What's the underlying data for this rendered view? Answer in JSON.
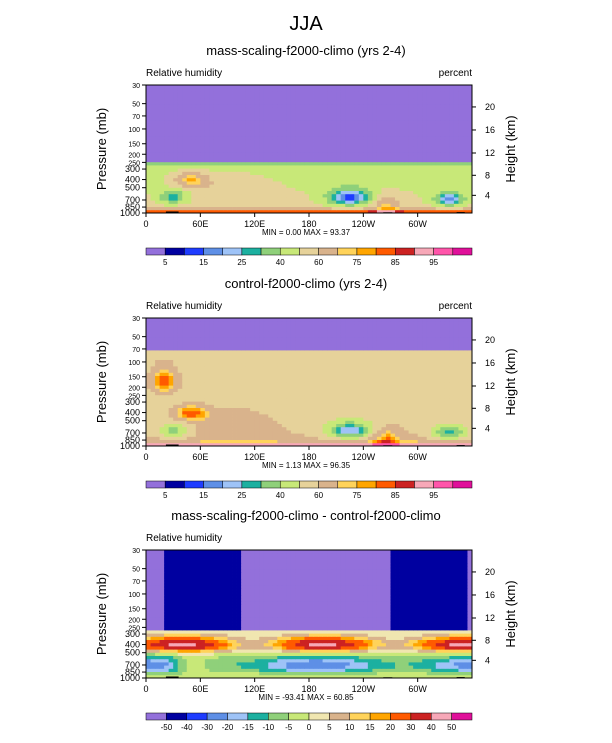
{
  "page_title": "JJA",
  "colors": {
    "relhum_levels": [
      "#9370db",
      "#0000a0",
      "#1e3cff",
      "#5e8fe6",
      "#9ec3f7",
      "#1cb0a0",
      "#8fd07a",
      "#c8e878",
      "#e6d29a",
      "#d9b38c",
      "#ffd35a",
      "#ffa500",
      "#ff5a00",
      "#cc2222",
      "#f7a8b8",
      "#ff55aa",
      "#e0109a"
    ],
    "diff_levels": [
      "#9370db",
      "#0000a0",
      "#1e3cff",
      "#5e8fe6",
      "#9ec3f7",
      "#1cb0a0",
      "#8fd07a",
      "#c8e878",
      "#f0e6b0",
      "#d9b38c",
      "#ffd35a",
      "#ffa500",
      "#ff5a00",
      "#cc2222",
      "#f7a8b8",
      "#e0109a"
    ],
    "terrain": "#000000"
  },
  "chart_data": [
    {
      "type": "heatmap",
      "title": "mass-scaling-f2000-climo (yrs 2-4)",
      "left_label": "Relative humidity",
      "right_label": "percent",
      "ylabel": "Pressure (mb)",
      "y2label": "Height (km)",
      "x_ticks": [
        "0",
        "60E",
        "120E",
        "180",
        "120W",
        "60W"
      ],
      "y_ticks": [
        "1000",
        "850",
        "700",
        "500",
        "400",
        "300",
        "250",
        "200",
        "150",
        "100",
        "70",
        "50",
        "30"
      ],
      "y2_ticks": [
        "4",
        "8",
        "12",
        "16",
        "20"
      ],
      "ylim": [
        1000,
        30
      ],
      "min_max_text": "MIN =  0.00  MAX = 93.37",
      "colorbar_labels": [
        "5",
        "15",
        "25",
        "40",
        "60",
        "75",
        "85",
        "95"
      ]
    },
    {
      "type": "heatmap",
      "title": "control-f2000-climo (yrs 2-4)",
      "left_label": "Relative humidity",
      "right_label": "percent",
      "ylabel": "Pressure (mb)",
      "y2label": "Height (km)",
      "x_ticks": [
        "0",
        "60E",
        "120E",
        "180",
        "120W",
        "60W"
      ],
      "y_ticks": [
        "1000",
        "850",
        "700",
        "500",
        "400",
        "300",
        "250",
        "200",
        "150",
        "100",
        "70",
        "50",
        "30"
      ],
      "y2_ticks": [
        "4",
        "8",
        "12",
        "16",
        "20"
      ],
      "ylim": [
        1000,
        30
      ],
      "min_max_text": "MIN =  1.13  MAX = 96.35",
      "colorbar_labels": [
        "5",
        "15",
        "25",
        "40",
        "60",
        "75",
        "85",
        "95"
      ]
    },
    {
      "type": "heatmap",
      "title": "mass-scaling-f2000-climo - control-f2000-climo",
      "left_label": "Relative humidity",
      "right_label": "",
      "ylabel": "Pressure (mb)",
      "y2label": "Height (km)",
      "x_ticks": [
        "0",
        "60E",
        "120E",
        "180",
        "120W",
        "60W"
      ],
      "y_ticks": [
        "1000",
        "850",
        "700",
        "500",
        "400",
        "300",
        "250",
        "200",
        "150",
        "100",
        "70",
        "50",
        "30"
      ],
      "y2_ticks": [
        "4",
        "8",
        "12",
        "16",
        "20"
      ],
      "ylim": [
        1000,
        30
      ],
      "min_max_text": "MIN = -93.41  MAX = 60.85",
      "colorbar_labels": [
        "-50",
        "-40",
        "-30",
        "-20",
        "-15",
        "-10",
        "-5",
        "0",
        "5",
        "10",
        "15",
        "20",
        "30",
        "40",
        "50"
      ]
    }
  ]
}
